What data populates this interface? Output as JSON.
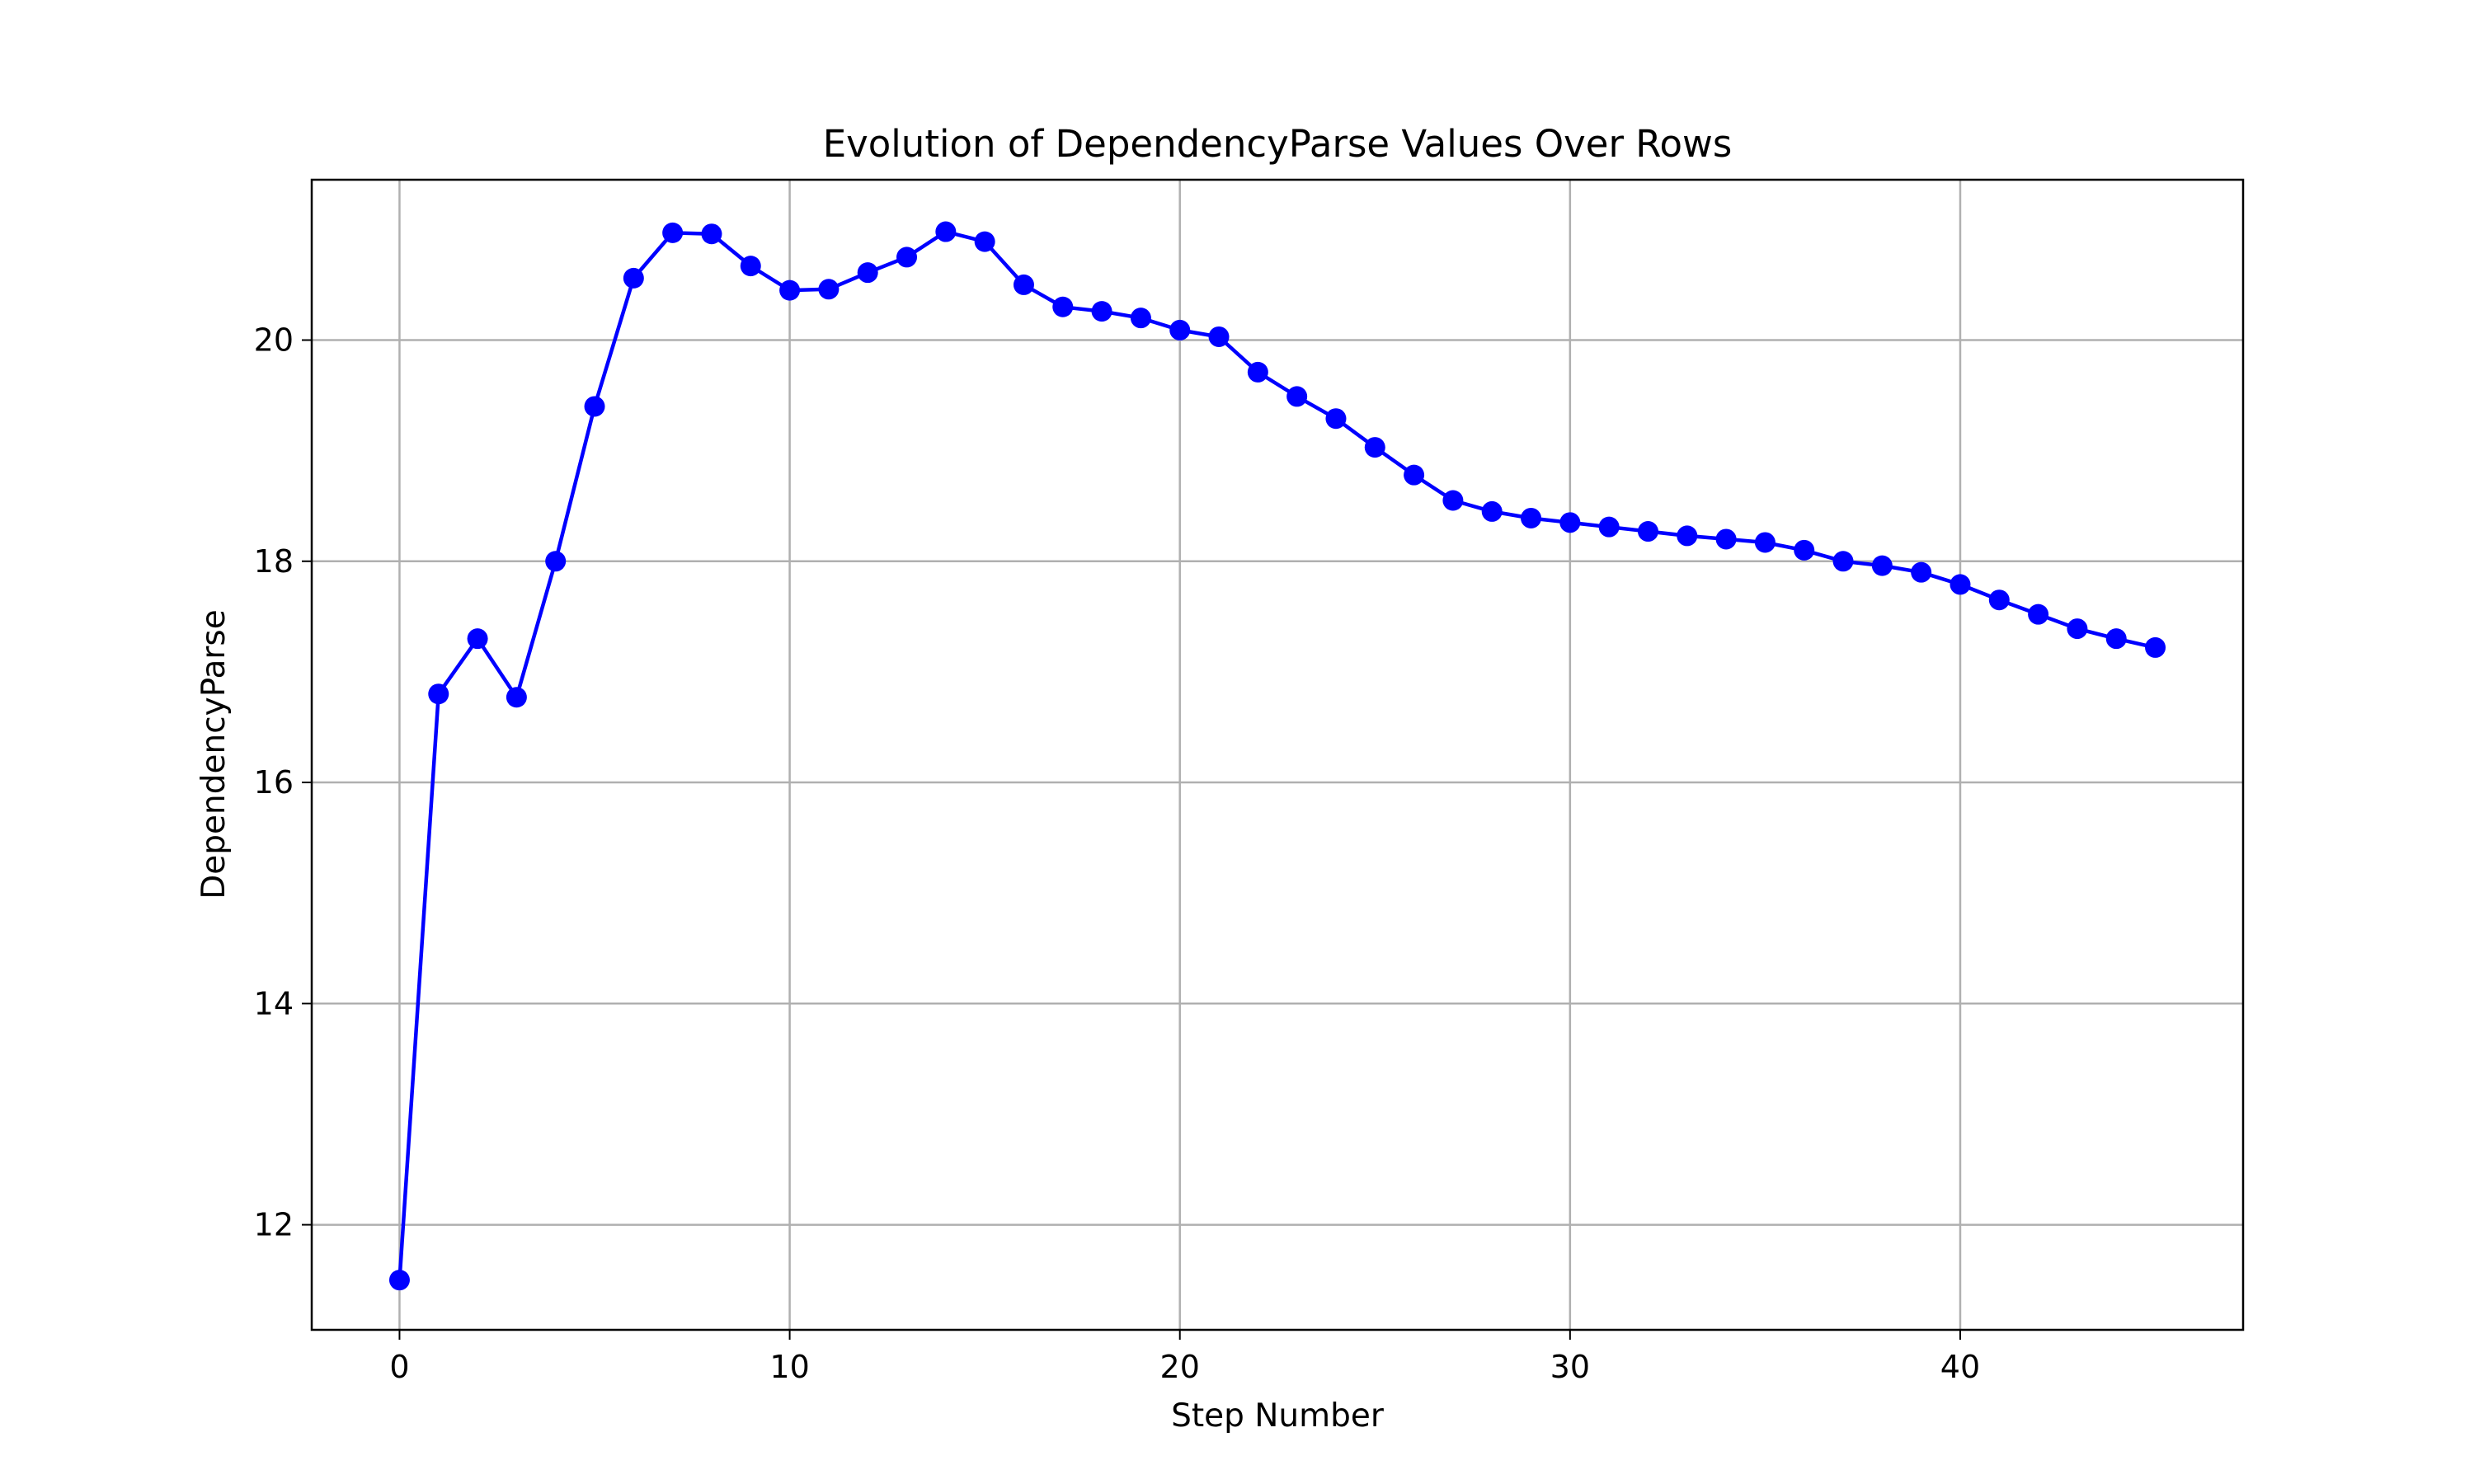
{
  "chart_data": {
    "type": "line",
    "title": "Evolution of DependencyParse Values Over Rows",
    "xlabel": "Step Number",
    "ylabel": "DependencyParse",
    "xlim": [
      -2.25,
      47.25
    ],
    "ylim": [
      11.05,
      21.45
    ],
    "xticks": [
      0,
      10,
      20,
      30,
      40
    ],
    "yticks": [
      12,
      14,
      16,
      18,
      20
    ],
    "grid": true,
    "legend": "none",
    "series": [
      {
        "color": "#0000ff",
        "marker": "circle",
        "x": [
          0,
          1,
          2,
          3,
          4,
          5,
          6,
          7,
          8,
          9,
          10,
          11,
          12,
          13,
          14,
          15,
          16,
          17,
          18,
          19,
          20,
          21,
          22,
          23,
          24,
          25,
          26,
          27,
          28,
          29,
          30,
          31,
          32,
          33,
          34,
          35,
          36,
          37,
          38,
          39,
          40,
          41,
          42,
          43,
          44,
          45
        ],
        "y": [
          11.5,
          16.8,
          17.3,
          16.77,
          18.0,
          19.4,
          20.56,
          20.97,
          20.96,
          20.67,
          20.45,
          20.46,
          20.61,
          20.75,
          20.98,
          20.89,
          20.5,
          20.3,
          20.26,
          20.2,
          20.09,
          20.03,
          19.71,
          19.49,
          19.29,
          19.03,
          18.78,
          18.55,
          18.45,
          18.39,
          18.35,
          18.31,
          18.27,
          18.23,
          18.2,
          18.17,
          18.1,
          18.0,
          17.96,
          17.9,
          17.79,
          17.65,
          17.52,
          17.39,
          17.3,
          17.22
        ]
      }
    ]
  }
}
